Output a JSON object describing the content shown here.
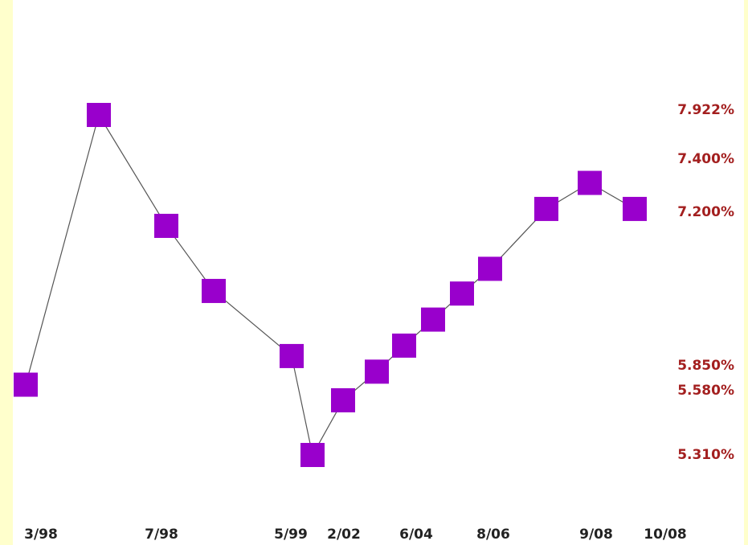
{
  "chart_data": {
    "type": "line",
    "marker": "square",
    "x_tick_labels": [
      "3/98",
      "7/98",
      "5/99",
      "2/02",
      "6/04",
      "8/06",
      "9/08",
      "10/08"
    ],
    "y_tick_labels": [
      "7.922%",
      "7.400%",
      "7.200%",
      "5.850%",
      "5.580%",
      "5.310%"
    ],
    "series": [
      {
        "values": [
          5.85,
          7.922,
          7.07,
          6.57,
          6.07,
          5.31,
          5.73,
          5.95,
          6.15,
          6.35,
          6.55,
          6.74,
          7.2,
          7.4,
          7.2
        ]
      }
    ],
    "ylim": [
      5.0,
      8.3
    ],
    "grid": false,
    "colors": {
      "marker": "#9900cc",
      "line": "#555555",
      "y_labels": "#a31f1f",
      "x_labels": "#222222",
      "page_background": "#ffffcc",
      "plot_background": "#ffffff"
    }
  }
}
